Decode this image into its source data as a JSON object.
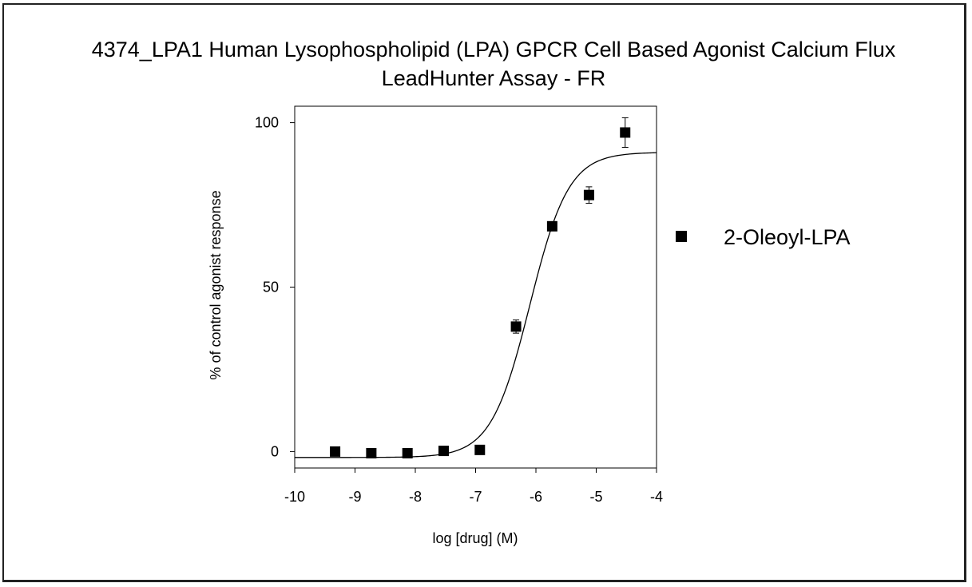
{
  "chart_data": {
    "type": "scatter",
    "title_lines": [
      "4374_LPA1 Human Lysophospholipid (LPA) GPCR Cell Based Agonist Calcium Flux",
      "LeadHunter Assay - FR"
    ],
    "xlabel": "log [drug] (M)",
    "ylabel": "% of control agonist response",
    "xlim": [
      -10,
      -4
    ],
    "ylim": [
      -5,
      105
    ],
    "x_ticks": [
      -10,
      -9,
      -8,
      -7,
      -6,
      -5,
      -4
    ],
    "y_ticks": [
      0,
      50,
      100
    ],
    "grid": false,
    "legend_position": "right",
    "series": [
      {
        "name": "2-Oleoyl-LPA",
        "marker": "square",
        "color": "#000000",
        "x": [
          -9.33,
          -8.73,
          -8.13,
          -7.53,
          -6.93,
          -6.33,
          -5.73,
          -5.12,
          -4.52
        ],
        "y": [
          0.0,
          -0.5,
          -0.5,
          0.2,
          0.5,
          38.0,
          68.5,
          78.0,
          97.0
        ],
        "error": [
          0,
          0,
          0,
          0,
          0,
          2.0,
          0,
          2.5,
          4.5
        ]
      }
    ],
    "fit_curve": {
      "model": "4-parameter logistic",
      "bottom": -1.8,
      "top": 91.0,
      "log_ec50": -6.1,
      "hill": 1.35
    }
  }
}
